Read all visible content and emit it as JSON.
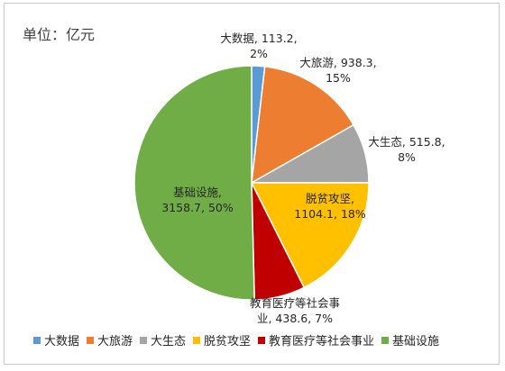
{
  "unit_label": "单位：亿元",
  "colors": {
    "big_data": "#5b9bd5",
    "tourism": "#ed7d31",
    "ecology": "#a5a5a5",
    "poverty": "#ffc000",
    "education": "#c00000",
    "infrastructure": "#70ad47"
  },
  "chart_data": {
    "type": "pie",
    "title": "",
    "unit": "亿元",
    "legend": "bottom",
    "slices": [
      {
        "name": "大数据",
        "value": 113.2,
        "percent": "2%",
        "label_line1": "大数据, 113.2,",
        "label_line2": "2%",
        "color": "#5b9bd5"
      },
      {
        "name": "大旅游",
        "value": 938.3,
        "percent": "15%",
        "label_line1": "大旅游, 938.3,",
        "label_line2": "15%",
        "color": "#ed7d31"
      },
      {
        "name": "大生态",
        "value": 515.8,
        "percent": "8%",
        "label_line1": "大生态, 515.8,",
        "label_line2": "8%",
        "color": "#a5a5a5"
      },
      {
        "name": "脱贫攻坚",
        "value": 1104.1,
        "percent": "18%",
        "label_line1": "脱贫攻坚,",
        "label_line2": "1104.1, 18%",
        "color": "#ffc000"
      },
      {
        "name": "教育医疗等社会事业",
        "value": 438.6,
        "percent": "7%",
        "label_line1": "教育医疗等社会事",
        "label_line2": "业, 438.6, 7%",
        "color": "#c00000"
      },
      {
        "name": "基础设施",
        "value": 3158.7,
        "percent": "50%",
        "label_line1": "基础设施,",
        "label_line2": "3158.7, 50%",
        "color": "#70ad47"
      }
    ]
  }
}
